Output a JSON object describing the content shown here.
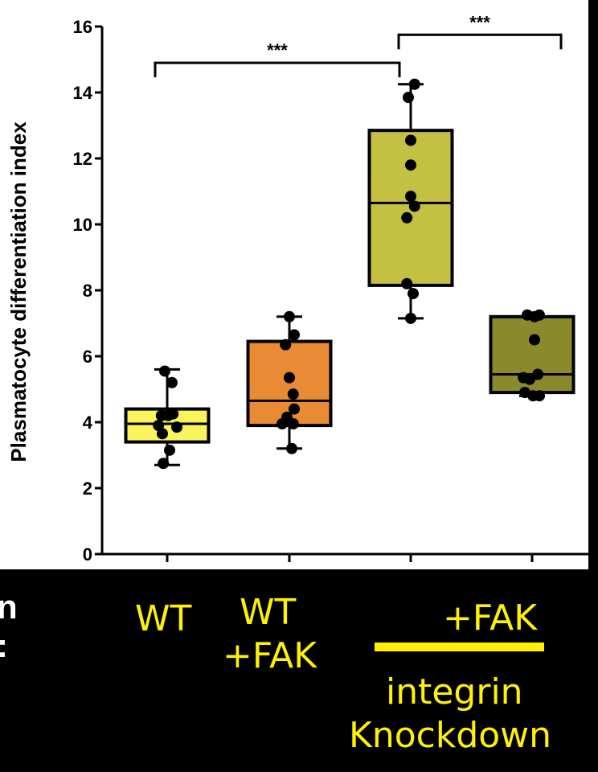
{
  "chart_data": {
    "type": "box",
    "ylabel": "Plasmatocyte differentiation index",
    "ylim": [
      0,
      16
    ],
    "yticks": [
      0,
      2,
      4,
      6,
      8,
      10,
      12,
      14,
      16
    ],
    "categories": [
      "WT",
      "WT +FAK",
      "integrin Knockdown",
      "integrin Knockdown +FAK"
    ],
    "boxes": [
      {
        "color": "#f9f35c",
        "whisker_low": 2.7,
        "q1": 3.4,
        "median": 3.95,
        "q3": 4.4,
        "whisker_high": 5.6,
        "points": [
          [
            -0.05,
            5.55
          ],
          [
            0.1,
            5.2
          ],
          [
            -0.12,
            4.2
          ],
          [
            0.02,
            4.2
          ],
          [
            0.12,
            4.25
          ],
          [
            -0.18,
            3.9
          ],
          [
            0.2,
            3.85
          ],
          [
            -0.1,
            3.65
          ],
          [
            0.05,
            3.15
          ],
          [
            -0.08,
            2.75
          ]
        ]
      },
      {
        "color": "#e98a35",
        "whisker_low": 3.2,
        "q1": 3.9,
        "median": 4.65,
        "q3": 6.45,
        "whisker_high": 7.2,
        "points": [
          [
            0.0,
            7.2
          ],
          [
            0.1,
            6.65
          ],
          [
            -0.08,
            6.35
          ],
          [
            0.0,
            5.35
          ],
          [
            0.08,
            4.85
          ],
          [
            0.1,
            4.4
          ],
          [
            -0.05,
            4.15
          ],
          [
            -0.15,
            3.95
          ],
          [
            0.08,
            3.95
          ],
          [
            0.05,
            3.2
          ]
        ]
      },
      {
        "color": "#c4c042",
        "whisker_low": 7.15,
        "q1": 8.15,
        "median": 10.65,
        "q3": 12.85,
        "whisker_high": 14.25,
        "points": [
          [
            0.08,
            14.25
          ],
          [
            -0.05,
            13.85
          ],
          [
            0.0,
            12.55
          ],
          [
            0.0,
            11.8
          ],
          [
            0.0,
            10.85
          ],
          [
            0.08,
            10.55
          ],
          [
            -0.08,
            10.2
          ],
          [
            -0.08,
            8.2
          ],
          [
            0.05,
            7.9
          ],
          [
            0.0,
            7.15
          ]
        ]
      },
      {
        "color": "#8a8a2c",
        "whisker_low": 4.8,
        "q1": 4.9,
        "median": 5.45,
        "q3": 7.2,
        "whisker_high": 7.2,
        "points": [
          [
            -0.1,
            7.25
          ],
          [
            0.05,
            7.2
          ],
          [
            0.15,
            7.25
          ],
          [
            0.05,
            6.5
          ],
          [
            -0.18,
            5.35
          ],
          [
            -0.05,
            5.3
          ],
          [
            0.12,
            5.45
          ],
          [
            -0.15,
            4.9
          ],
          [
            0.02,
            4.8
          ],
          [
            0.15,
            4.8
          ]
        ]
      }
    ],
    "significance": [
      {
        "from": 0,
        "to": 2,
        "y": 14.9,
        "label": "***"
      },
      {
        "from": 2,
        "to": 3,
        "y": 15.75,
        "label": "***"
      }
    ]
  },
  "captions": {
    "wt": "WT",
    "wt_fak_line1": "WT",
    "wt_fak_line2": "+FAK",
    "fak": "+FAK",
    "integrin": "integrin",
    "knockdown": "Knockdown",
    "cut_1": "n",
    "cut_2": ":"
  }
}
